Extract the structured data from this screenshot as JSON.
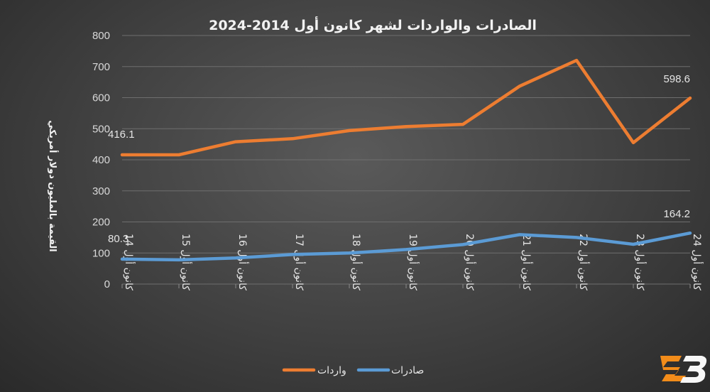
{
  "chart_data": {
    "type": "line",
    "title": "الصادرات والواردات لشهر كانون أول 2014-2024",
    "ylabel": "القيمة بالمليون دولار أمريكي",
    "xlabel": "",
    "ylim": [
      0,
      800
    ],
    "yticks": [
      0,
      100,
      200,
      300,
      400,
      500,
      600,
      700,
      800
    ],
    "grid": true,
    "legend_position": "bottom",
    "categories": [
      "كانون أول 14",
      "كانون أول 15",
      "كانون أول 16",
      "كانون أول 17",
      "كانون أول 18",
      "كانون أول 19",
      "كانون أول 20",
      "كانون أول 21",
      "كانون أول 22",
      "كانون أول 23",
      "كانون أول 24"
    ],
    "series": [
      {
        "name": "واردات",
        "color": "#ed7d31",
        "values": [
          416.1,
          416,
          458,
          468,
          494,
          507,
          514,
          637,
          720,
          455,
          598.6
        ]
      },
      {
        "name": "صادرات",
        "color": "#5b9bd5",
        "values": [
          80.3,
          78,
          84,
          95,
          100,
          111,
          127,
          159,
          150,
          128,
          164.2
        ]
      }
    ],
    "data_labels": [
      {
        "series": 0,
        "index": 0,
        "text": "416.1"
      },
      {
        "series": 0,
        "index": 10,
        "text": "598.6"
      },
      {
        "series": 1,
        "index": 0,
        "text": "80.3"
      },
      {
        "series": 1,
        "index": 10,
        "text": "164.2"
      }
    ]
  },
  "logo": {
    "name": "logo-icon",
    "text": "ZB",
    "color": "#f28c1a"
  }
}
